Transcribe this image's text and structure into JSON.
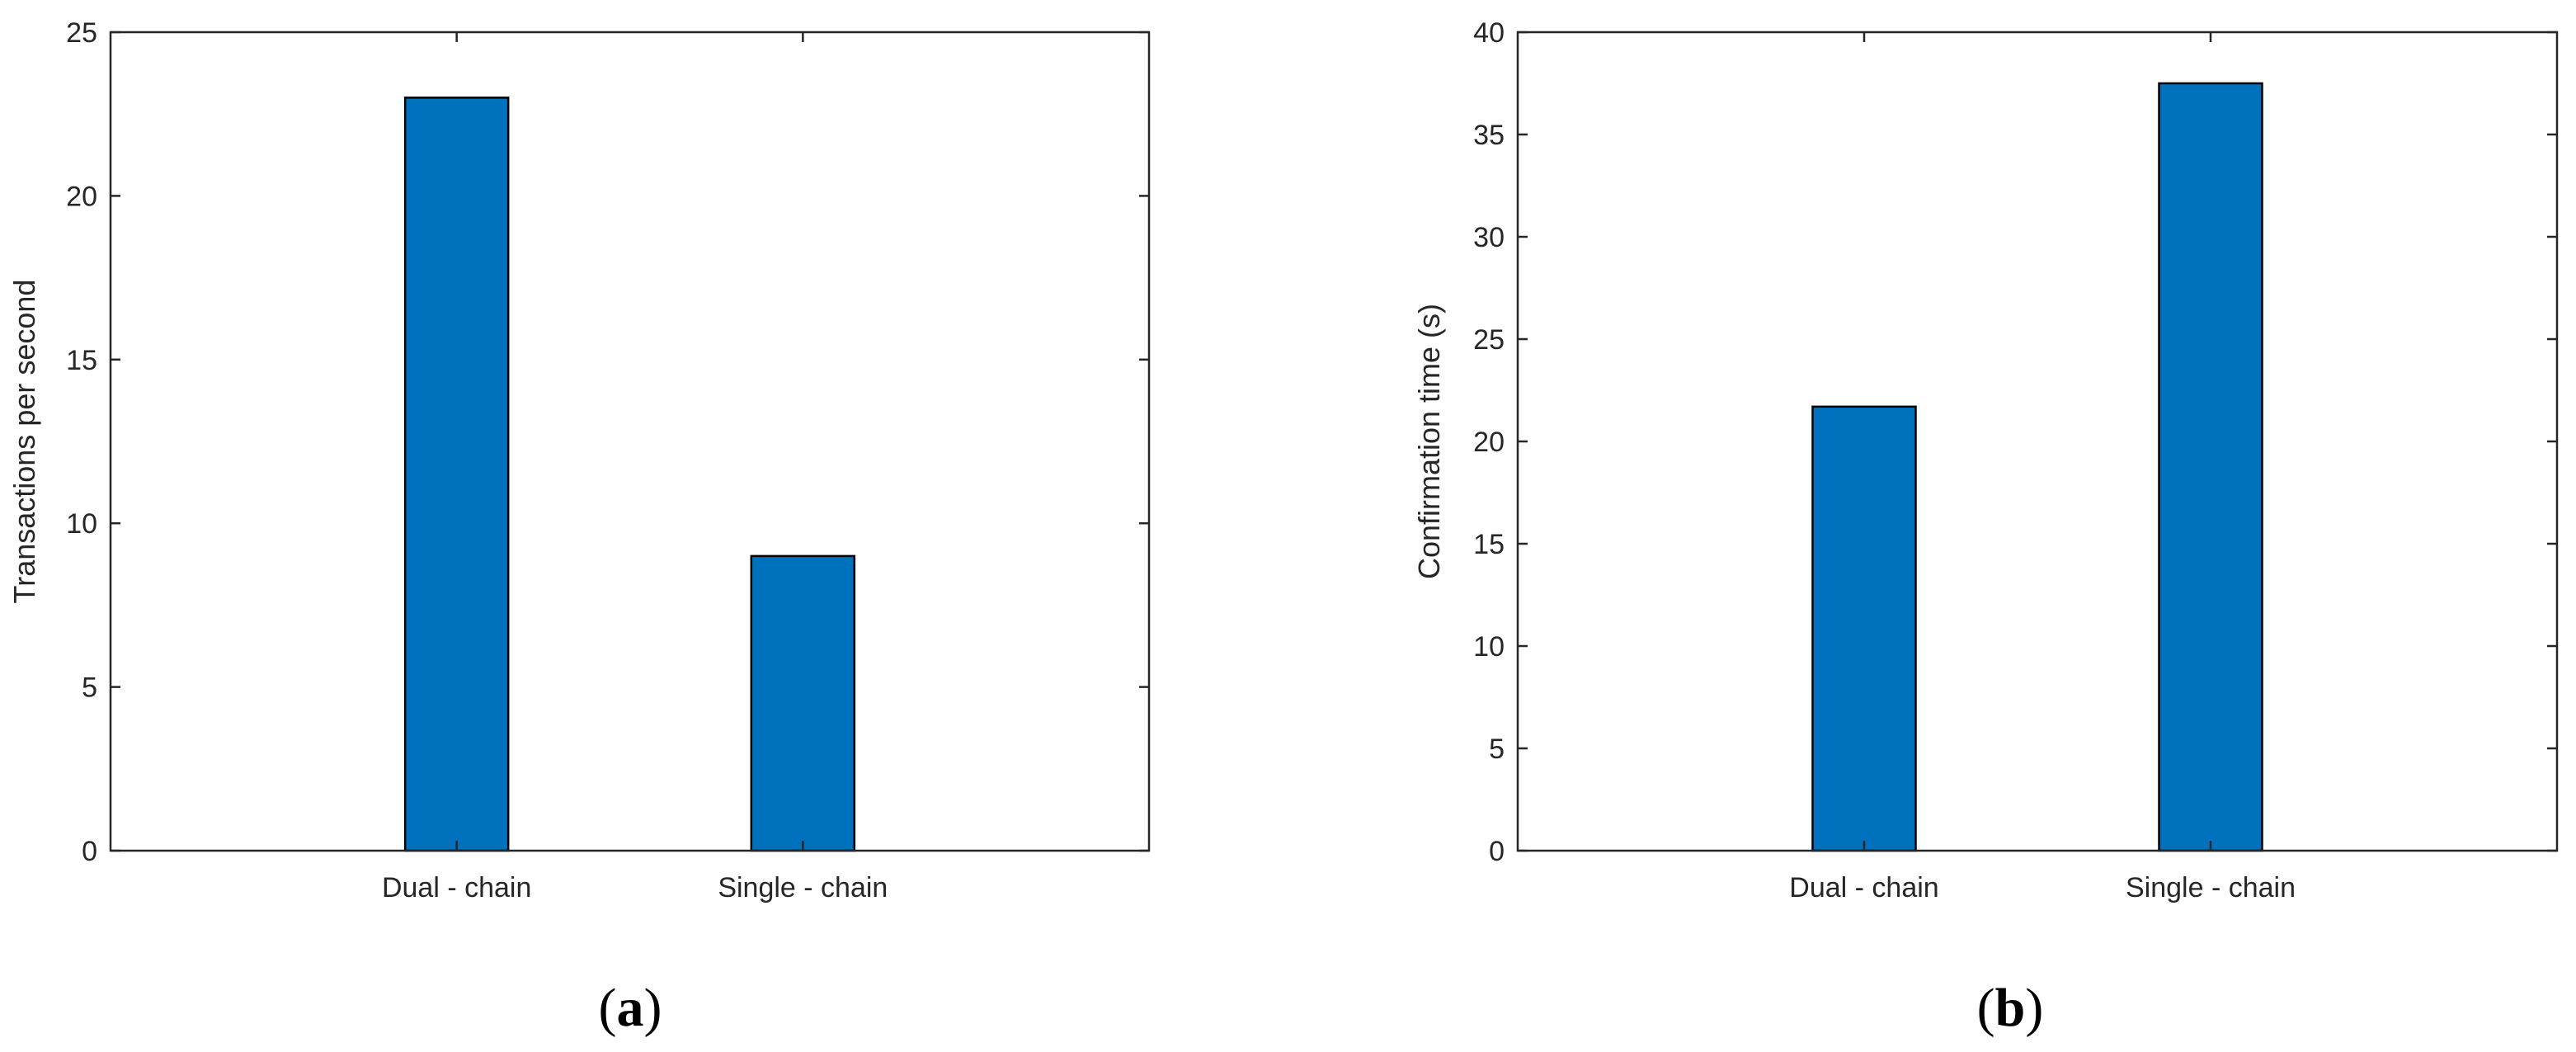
{
  "figure": {
    "panels": [
      {
        "label_open": "(",
        "label_letter": "a",
        "label_close": ")"
      },
      {
        "label_open": "(",
        "label_letter": "b",
        "label_close": ")"
      }
    ]
  },
  "colors": {
    "bar_fill": "#0072BD",
    "bar_edge": "#000000",
    "axis": "#262626"
  },
  "chart_data": [
    {
      "type": "bar",
      "categories": [
        "Dual - chain",
        "Single - chain"
      ],
      "values": [
        23,
        9
      ],
      "title": "",
      "xlabel": "",
      "ylabel": "Transactions per second",
      "ylim": [
        0,
        25
      ],
      "yticks": [
        0,
        5,
        10,
        15,
        20,
        25
      ],
      "grid": false,
      "box": true
    },
    {
      "type": "bar",
      "categories": [
        "Dual - chain",
        "Single - chain"
      ],
      "values": [
        21.7,
        37.5
      ],
      "title": "",
      "xlabel": "",
      "ylabel": "Confirmation time (s)",
      "ylim": [
        0,
        40
      ],
      "yticks": [
        0,
        5,
        10,
        15,
        20,
        25,
        30,
        35,
        40
      ],
      "grid": false,
      "box": true
    }
  ]
}
